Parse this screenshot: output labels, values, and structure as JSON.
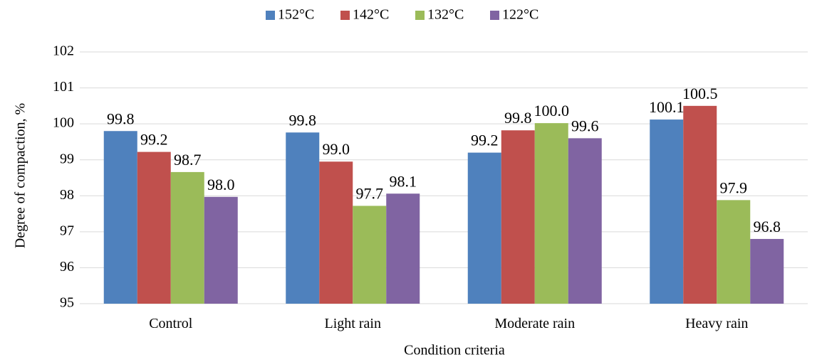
{
  "chart_data": {
    "type": "bar",
    "title": "",
    "xlabel": "Condition criteria",
    "ylabel": "Degree of compaction, %",
    "categories": [
      "Control",
      "Light rain",
      "Moderate rain",
      "Heavy rain"
    ],
    "series": [
      {
        "name": "152°C",
        "color": "#4F81BD",
        "values": [
          99.8,
          99.76,
          99.2,
          100.12
        ],
        "labels": [
          "99.8",
          "99.8",
          "99.2",
          "100.1"
        ]
      },
      {
        "name": "142°C",
        "color": "#C0504D",
        "values": [
          99.22,
          98.95,
          99.82,
          100.5
        ],
        "labels": [
          "99.2",
          "99.0",
          "99.8",
          "100.5"
        ]
      },
      {
        "name": "132°C",
        "color": "#9BBB59",
        "values": [
          98.66,
          97.72,
          100.02,
          97.88
        ],
        "labels": [
          "98.7",
          "97.7",
          "100.0",
          "97.9"
        ]
      },
      {
        "name": "122°C",
        "color": "#8064A2",
        "values": [
          97.97,
          98.06,
          99.6,
          96.8
        ],
        "labels": [
          "98.0",
          "98.1",
          "99.6",
          "96.8"
        ]
      }
    ],
    "ylim": [
      95,
      102
    ],
    "yticks": [
      "95",
      "96",
      "97",
      "98",
      "99",
      "100",
      "101",
      "102"
    ],
    "grid": true,
    "legend_position": "top"
  }
}
